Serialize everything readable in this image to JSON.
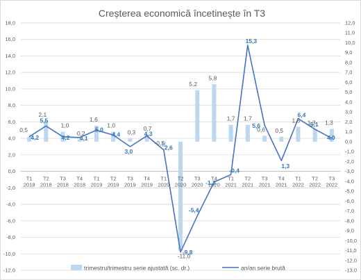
{
  "chart_data": {
    "type": "bar+line",
    "title": "Creșterea economică încetinește în T3",
    "categories": [
      [
        "T1",
        "2018"
      ],
      [
        "T2",
        "2018"
      ],
      [
        "T3",
        "2018"
      ],
      [
        "T4",
        "2018"
      ],
      [
        "T1",
        "2019"
      ],
      [
        "T2",
        "2019"
      ],
      [
        "T3",
        "2019"
      ],
      [
        "T4",
        "2019"
      ],
      [
        "T1",
        "2020"
      ],
      [
        "T2",
        "2020"
      ],
      [
        "T3",
        "2020"
      ],
      [
        "T4",
        "2020"
      ],
      [
        "T1",
        "2021"
      ],
      [
        "T2",
        "2021"
      ],
      [
        "T3",
        "2021"
      ],
      [
        "T4",
        "2021"
      ],
      [
        "T1",
        "2022"
      ],
      [
        "T2",
        "2022"
      ],
      [
        "T3",
        "2022"
      ]
    ],
    "y_left": {
      "min": -12,
      "max": 18,
      "step": 2,
      "labels": [
        "-12,0",
        "-10,0",
        "-8,0",
        "-6,0",
        "-4,0",
        "-2,0",
        "0,0",
        "2,0",
        "4,0",
        "6,0",
        "8,0",
        "10,0",
        "12,0",
        "14,0",
        "16,0",
        "18,0"
      ]
    },
    "y_right": {
      "min": -13,
      "max": 12,
      "step": 1,
      "labels": [
        "-13,0",
        "-12,0",
        "-11,0",
        "-10,0",
        "-9,0",
        "-8,0",
        "-7,0",
        "-6,0",
        "-5,0",
        "-4,0",
        "-3,0",
        "-2,0",
        "-1,0",
        "0,0",
        "1,0",
        "2,0",
        "3,0",
        "4,0",
        "5,0",
        "6,0",
        "7,0",
        "8,0",
        "9,0",
        "10,0",
        "11,0",
        "12,0"
      ]
    },
    "series": [
      {
        "name": "trimestru/trimestru serie ajustată (sc. dr.)",
        "type": "bar",
        "axis": "right",
        "color": "#bdd7ee",
        "values": [
          0.5,
          2.1,
          1.0,
          0.2,
          1.6,
          1.0,
          0.3,
          0.7,
          -0.5,
          -11.0,
          5.2,
          5.8,
          1.7,
          1.7,
          0.6,
          0.5,
          1.5,
          1.3,
          1.3
        ],
        "labels": [
          "0,5",
          "2,1",
          "1,0",
          "0,2",
          "1,6",
          "1,0",
          "0,3",
          "0,7",
          "-0,5",
          "-11,0",
          "5,2",
          "5,8",
          "1,7",
          "1,7",
          "0,6",
          "0,5",
          "1,5",
          "1,3",
          "1,3"
        ]
      },
      {
        "name": "an/an serie brută",
        "type": "line",
        "axis": "left",
        "color": "#4472c4",
        "values": [
          4.2,
          5.5,
          4.2,
          4.1,
          5.0,
          4.4,
          3.0,
          4.3,
          2.6,
          -9.8,
          -5.4,
          -1.3,
          -0.4,
          15.3,
          5.6,
          1.3,
          6.4,
          5.1,
          4.0
        ],
        "labels": [
          "4,2",
          "5,5",
          "4,2",
          "4,1",
          "5,0",
          "4,4",
          "3,0",
          "4,3",
          "2,6",
          "-9,8",
          "-5,4",
          "-1,3",
          "-0,4",
          "15,3",
          "5,6",
          "1,3",
          "6,4",
          "5,1",
          "4,0"
        ]
      }
    ],
    "legend_position": "bottom",
    "grid": true
  }
}
